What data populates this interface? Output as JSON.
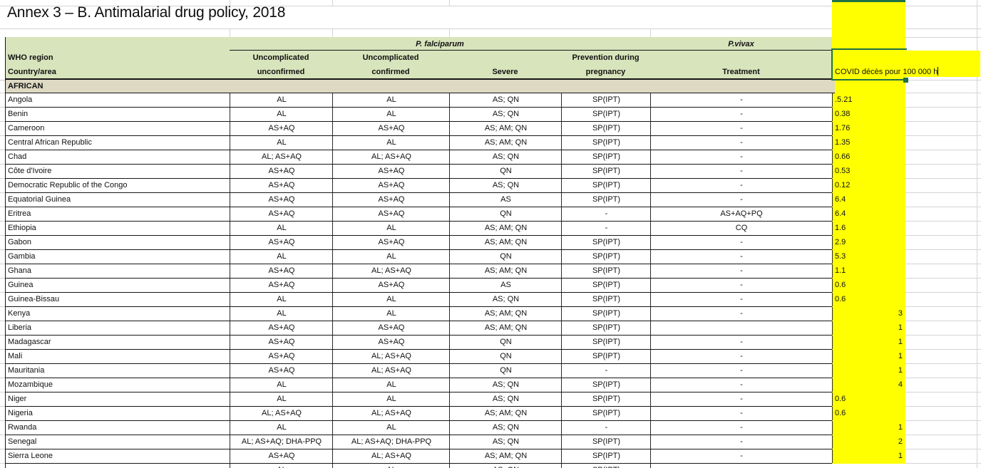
{
  "title": "Annex 3 – B. Antimalarial drug policy, 2018",
  "section_label": "AFRICAN",
  "header": {
    "region_label": "WHO region",
    "country_label": "Country/area",
    "falciparum_label": "P. falciparum",
    "vivax_label": "P.vivax",
    "col_unconfirmed_line1": "Uncomplicated",
    "col_unconfirmed_line2": "unconfirmed",
    "col_confirmed_line1": "Uncomplicated",
    "col_confirmed_line2": "confirmed",
    "col_severe": "Severe",
    "col_pregnancy_line1": "Prevention during",
    "col_pregnancy_line2": "pregnancy",
    "col_treatment": "Treatment"
  },
  "covid_cell": {
    "text": "COVID décès pour 100 000 h"
  },
  "colors": {
    "header_green": "#d8e4bc",
    "section_tan": "#ddd9c3",
    "highlight_yellow": "#ffff00",
    "selection_green": "#1f7245"
  },
  "table": {
    "columns": [
      "Country/area",
      "Uncomplicated unconfirmed",
      "Uncomplicated confirmed",
      "Severe",
      "Prevention during pregnancy",
      "Treatment",
      "COVID décès pour 100 000 h"
    ],
    "rows": [
      {
        "country": "Angola",
        "cells": [
          "AL",
          "AL",
          "AS; QN",
          "SP(IPT)",
          "-"
        ],
        "covid": ".5.21",
        "covid_align": "left"
      },
      {
        "country": "Benin",
        "cells": [
          "AL",
          "AL",
          "AS; QN",
          "SP(IPT)",
          "-"
        ],
        "covid": "0.38",
        "covid_align": "left"
      },
      {
        "country": "Cameroon",
        "cells": [
          "AS+AQ",
          "AS+AQ",
          "AS; AM; QN",
          "SP(IPT)",
          "-"
        ],
        "covid": "1.76",
        "covid_align": "left"
      },
      {
        "country": "Central African Republic",
        "cells": [
          "AL",
          "AL",
          "AS; AM; QN",
          "SP(IPT)",
          "-"
        ],
        "covid": "1.35",
        "covid_align": "left"
      },
      {
        "country": "Chad",
        "cells": [
          "AL; AS+AQ",
          "AL; AS+AQ",
          "AS; QN",
          "SP(IPT)",
          "-"
        ],
        "covid": "0.66",
        "covid_align": "left"
      },
      {
        "country": "Côte d'Ivoire",
        "cells": [
          "AS+AQ",
          "AS+AQ",
          "QN",
          "SP(IPT)",
          "-"
        ],
        "covid": "0.53",
        "covid_align": "left"
      },
      {
        "country": "Democratic Republic of the Congo",
        "cells": [
          "AS+AQ",
          "AS+AQ",
          "AS; QN",
          "SP(IPT)",
          "-"
        ],
        "covid": "0.12",
        "covid_align": "left"
      },
      {
        "country": "Equatorial Guinea",
        "cells": [
          "AS+AQ",
          "AS+AQ",
          "AS",
          "SP(IPT)",
          "-"
        ],
        "covid": "6.4",
        "covid_align": "left"
      },
      {
        "country": "Eritrea",
        "cells": [
          "AS+AQ",
          "AS+AQ",
          "QN",
          "-",
          "AS+AQ+PQ"
        ],
        "covid": "6.4",
        "covid_align": "left"
      },
      {
        "country": "Ethiopia",
        "cells": [
          "AL",
          "AL",
          "AS; AM; QN",
          "-",
          "CQ"
        ],
        "covid": "1.6",
        "covid_align": "left"
      },
      {
        "country": "Gabon",
        "cells": [
          "AS+AQ",
          "AS+AQ",
          "AS; AM; QN",
          "SP(IPT)",
          "-"
        ],
        "covid": "2.9",
        "covid_align": "left"
      },
      {
        "country": "Gambia",
        "cells": [
          "AL",
          "AL",
          "QN",
          "SP(IPT)",
          "-"
        ],
        "covid": "5.3",
        "covid_align": "left"
      },
      {
        "country": "Ghana",
        "cells": [
          "AS+AQ",
          "AL; AS+AQ",
          "AS; AM; QN",
          "SP(IPT)",
          "-"
        ],
        "covid": "1.1",
        "covid_align": "left"
      },
      {
        "country": "Guinea",
        "cells": [
          "AS+AQ",
          "AS+AQ",
          "AS",
          "SP(IPT)",
          "-"
        ],
        "covid": "0.6",
        "covid_align": "left"
      },
      {
        "country": "Guinea-Bissau",
        "cells": [
          "AL",
          "AL",
          "AS; QN",
          "SP(IPT)",
          "-"
        ],
        "covid": "0.6",
        "covid_align": "left"
      },
      {
        "country": "Kenya",
        "cells": [
          "AL",
          "AL",
          "AS; AM; QN",
          "SP(IPT)",
          "-"
        ],
        "covid": "3",
        "covid_align": "right"
      },
      {
        "country": "Liberia",
        "cells": [
          "AS+AQ",
          "AS+AQ",
          "AS; AM; QN",
          "SP(IPT)",
          ""
        ],
        "covid": "1",
        "covid_align": "right"
      },
      {
        "country": "Madagascar",
        "cells": [
          "AS+AQ",
          "AS+AQ",
          "QN",
          "SP(IPT)",
          "-"
        ],
        "covid": "1",
        "covid_align": "right"
      },
      {
        "country": "Mali",
        "cells": [
          "AS+AQ",
          "AL; AS+AQ",
          "QN",
          "SP(IPT)",
          "-"
        ],
        "covid": "1",
        "covid_align": "right"
      },
      {
        "country": "Mauritania",
        "cells": [
          "AS+AQ",
          "AL; AS+AQ",
          "QN",
          "-",
          "-"
        ],
        "covid": "1",
        "covid_align": "right"
      },
      {
        "country": "Mozambique",
        "cells": [
          "AL",
          "AL",
          "AS; QN",
          "SP(IPT)",
          "-"
        ],
        "covid": "4",
        "covid_align": "right"
      },
      {
        "country": "Niger",
        "cells": [
          "AL",
          "AL",
          "AS; QN",
          "SP(IPT)",
          "-"
        ],
        "covid": "0.6",
        "covid_align": "left"
      },
      {
        "country": "Nigeria",
        "cells": [
          "AL; AS+AQ",
          "AL; AS+AQ",
          "AS; AM; QN",
          "SP(IPT)",
          "-"
        ],
        "covid": "0.6",
        "covid_align": "left"
      },
      {
        "country": "Rwanda",
        "cells": [
          "AL",
          "AL",
          "AS; QN",
          "-",
          "-"
        ],
        "covid": "1",
        "covid_align": "right"
      },
      {
        "country": "Senegal",
        "cells": [
          "AL; AS+AQ; DHA-PPQ",
          "AL; AS+AQ; DHA-PPQ",
          "AS; QN",
          "SP(IPT)",
          "-"
        ],
        "covid": "2",
        "covid_align": "right"
      },
      {
        "country": "Sierra Leone",
        "cells": [
          "AS+AQ",
          "AL; AS+AQ",
          "AS; AM; QN",
          "SP(IPT)",
          "-"
        ],
        "covid": "1",
        "covid_align": "right"
      }
    ],
    "partial_row": {
      "country": "",
      "cells": [
        "AL",
        "AL",
        "AS; QN",
        "SP(IPT)",
        "-"
      ],
      "covid": "",
      "covid_align": "left"
    }
  }
}
